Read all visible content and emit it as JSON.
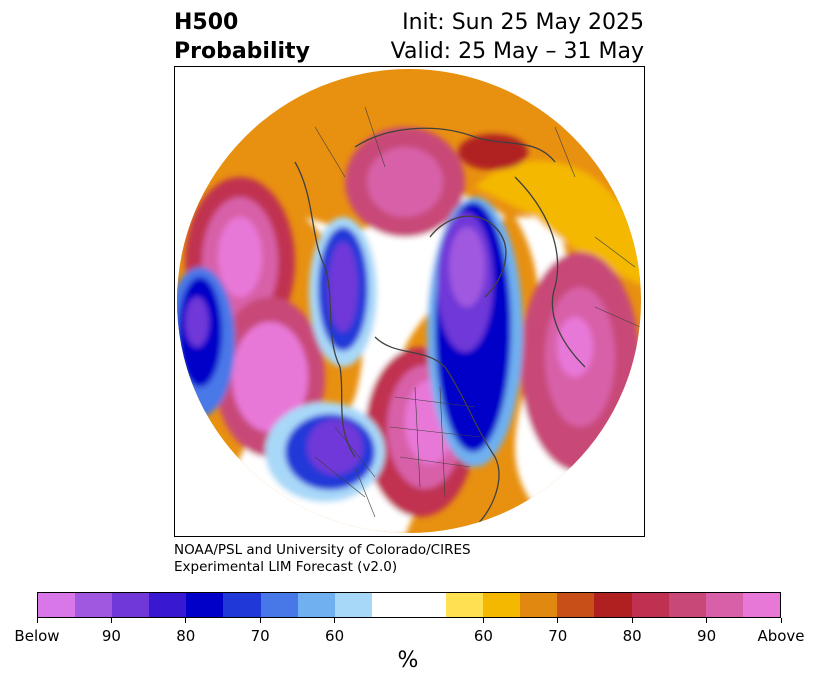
{
  "title": {
    "left_line1": "H500",
    "left_line2": "Probability",
    "right_line1": "Init: Sun 25 May 2025",
    "right_line2": "Valid: 25 May – 31 May"
  },
  "credit": {
    "line1": "NOAA/PSL and University of Colorado/CIRES",
    "line2": "Experimental LIM Forecast (v2.0)"
  },
  "colorbar": {
    "colors": [
      "#d878e8",
      "#a058e0",
      "#7038d8",
      "#3818d0",
      "#0000c8",
      "#2038d8",
      "#4878e8",
      "#70b0f0",
      "#a8d8f8",
      "#ffffff",
      "#ffffff",
      "#ffe050",
      "#f4b800",
      "#e08810",
      "#c85018",
      "#b02020",
      "#c03050",
      "#c84878",
      "#d860a8",
      "#e878d8"
    ],
    "labels": [
      "Below",
      "90",
      "80",
      "70",
      "60",
      "60",
      "70",
      "80",
      "90",
      "Above"
    ],
    "unit": "%"
  },
  "map": {
    "projection": "north-polar-stereographic",
    "features": [
      "coastlines",
      "country-borders",
      "state-borders"
    ],
    "anomalies": [
      {
        "region": "eastern-north-pacific",
        "sign": "above"
      },
      {
        "region": "western-north-america",
        "sign": "below"
      },
      {
        "region": "siberia",
        "sign": "above"
      },
      {
        "region": "europe",
        "sign": "below"
      },
      {
        "region": "western-russia",
        "sign": "above"
      },
      {
        "region": "central-north-pacific",
        "sign": "below"
      }
    ]
  }
}
